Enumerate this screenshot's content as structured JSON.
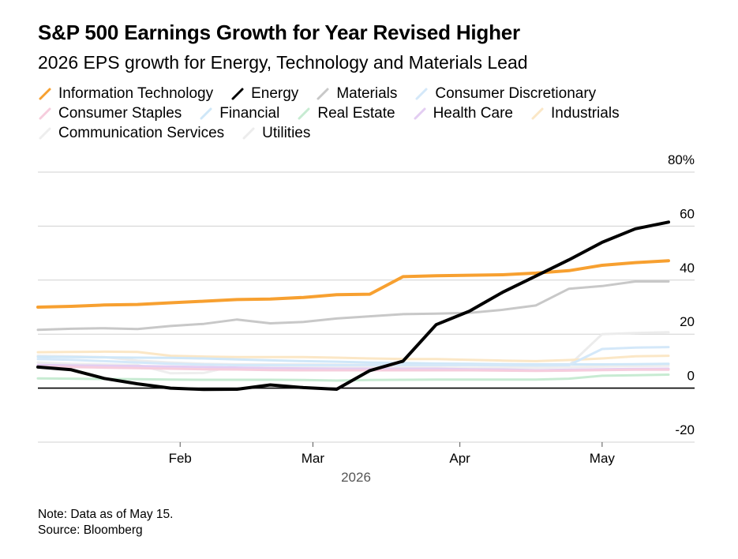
{
  "title": "S&P 500 Earnings Growth for Year Revised Higher",
  "subtitle": "2026 EPS growth for Energy, Technology and Materials Lead",
  "note": "Note: Data as of May 15.",
  "source": "Source: Bloomberg",
  "chart_data": {
    "type": "line",
    "title": "S&P 500 Earnings Growth for Year Revised Higher",
    "subtitle": "2026 EPS growth for Energy, Technology and Materials Lead",
    "xlabel": "2026",
    "ylabel": "",
    "ylim": [
      -20,
      80
    ],
    "yticks": [
      -20,
      0,
      20,
      40,
      60,
      80
    ],
    "ytick_labels": [
      "-20",
      "0",
      "20",
      "40",
      "60",
      "80%"
    ],
    "xlim": [
      "2026-01-02",
      "2026-05-21"
    ],
    "xticks": [
      {
        "date": "2026-02-01",
        "label": "Feb"
      },
      {
        "date": "2026-03-01",
        "label": "Mar"
      },
      {
        "date": "2026-04-01",
        "label": "Apr"
      },
      {
        "date": "2026-05-01",
        "label": "May"
      }
    ],
    "x": [
      "2026-01-02",
      "2026-01-09",
      "2026-01-16",
      "2026-01-23",
      "2026-01-30",
      "2026-02-06",
      "2026-02-13",
      "2026-02-20",
      "2026-02-27",
      "2026-03-06",
      "2026-03-13",
      "2026-03-20",
      "2026-03-27",
      "2026-04-03",
      "2026-04-10",
      "2026-04-17",
      "2026-04-24",
      "2026-05-01",
      "2026-05-08",
      "2026-05-15"
    ],
    "grid": true,
    "legend_position": "top-left",
    "series": [
      {
        "name": "Information Technology",
        "color": "#f7a030",
        "width": 4,
        "values": [
          30.0,
          30.3,
          30.8,
          31.0,
          31.6,
          32.2,
          32.8,
          33.0,
          33.6,
          34.6,
          34.8,
          41.3,
          41.6,
          41.8,
          42.0,
          42.6,
          43.5,
          45.5,
          46.5,
          47.2
        ]
      },
      {
        "name": "Energy",
        "color": "#000000",
        "width": 4,
        "values": [
          7.8,
          6.8,
          3.6,
          1.6,
          0.0,
          -0.5,
          -0.4,
          1.2,
          0.2,
          -0.4,
          6.5,
          10.0,
          23.5,
          28.5,
          35.5,
          41.5,
          47.5,
          54.0,
          59.0,
          61.5
        ]
      },
      {
        "name": "Materials",
        "color": "#c8c8c8",
        "width": 3,
        "values": [
          21.6,
          22.0,
          22.2,
          21.9,
          23.0,
          23.8,
          25.4,
          24.0,
          24.5,
          25.8,
          26.6,
          27.4,
          27.6,
          27.9,
          29.0,
          30.6,
          36.8,
          37.8,
          39.5,
          39.5
        ]
      },
      {
        "name": "Consumer Discretionary",
        "color": "#d4e8f9",
        "width": 3,
        "values": [
          10.8,
          10.5,
          10.0,
          9.5,
          9.0,
          8.7,
          8.5,
          8.5,
          8.5,
          8.5,
          8.6,
          8.6,
          8.6,
          8.6,
          8.5,
          8.4,
          8.5,
          14.5,
          15.0,
          15.2
        ]
      },
      {
        "name": "Consumer Staples",
        "color": "#f6cddd",
        "width": 3,
        "values": [
          8.0,
          7.8,
          7.6,
          7.4,
          7.2,
          7.0,
          6.9,
          6.7,
          6.6,
          6.6,
          6.6,
          6.6,
          6.6,
          6.6,
          6.5,
          6.4,
          6.5,
          6.7,
          6.8,
          6.8
        ]
      },
      {
        "name": "Financial",
        "color": "#cfe7f8",
        "width": 3,
        "values": [
          11.6,
          11.5,
          11.4,
          11.3,
          11.2,
          11.0,
          10.6,
          10.3,
          10.0,
          9.8,
          9.5,
          9.3,
          9.1,
          9.0,
          8.9,
          8.8,
          8.8,
          8.8,
          8.9,
          9.0
        ]
      },
      {
        "name": "Real Estate",
        "color": "#c7ebd2",
        "width": 3,
        "values": [
          3.6,
          3.5,
          3.4,
          3.3,
          3.2,
          3.1,
          3.1,
          3.1,
          3.0,
          2.8,
          3.0,
          3.1,
          3.2,
          3.2,
          3.2,
          3.2,
          3.5,
          4.6,
          4.8,
          5.0
        ]
      },
      {
        "name": "Health Care",
        "color": "#e3cdf2",
        "width": 3,
        "values": [
          8.6,
          8.4,
          8.3,
          8.2,
          8.0,
          7.8,
          7.6,
          7.4,
          7.3,
          7.2,
          7.2,
          7.2,
          7.2,
          7.0,
          6.9,
          6.6,
          6.8,
          7.0,
          7.1,
          7.2
        ]
      },
      {
        "name": "Industrials",
        "color": "#fbe7c6",
        "width": 3,
        "values": [
          13.3,
          13.4,
          13.5,
          13.4,
          12.0,
          11.7,
          11.5,
          11.5,
          11.5,
          11.3,
          11.0,
          10.8,
          10.8,
          10.5,
          10.2,
          10.0,
          10.4,
          11.0,
          11.8,
          12.0
        ]
      },
      {
        "name": "Communication Services",
        "color": "#eeeeee",
        "width": 3,
        "values": [
          9.5,
          9.0,
          8.8,
          8.6,
          5.5,
          5.6,
          8.5,
          8.3,
          8.1,
          8.0,
          7.8,
          7.6,
          7.6,
          7.5,
          7.5,
          7.5,
          7.8,
          8.0,
          8.2,
          8.3
        ]
      },
      {
        "name": "Utilities",
        "color": "#ececec",
        "width": 3,
        "values": [
          12.0,
          11.8,
          11.5,
          10.2,
          9.5,
          9.0,
          8.8,
          8.8,
          8.8,
          8.7,
          8.6,
          8.5,
          8.5,
          8.5,
          8.4,
          8.3,
          8.4,
          20.0,
          20.4,
          20.7
        ]
      }
    ],
    "draw_order": [
      "Utilities",
      "Communication Services",
      "Industrials",
      "Real Estate",
      "Health Care",
      "Consumer Staples",
      "Financial",
      "Consumer Discretionary",
      "Materials",
      "Information Technology",
      "Energy"
    ]
  }
}
